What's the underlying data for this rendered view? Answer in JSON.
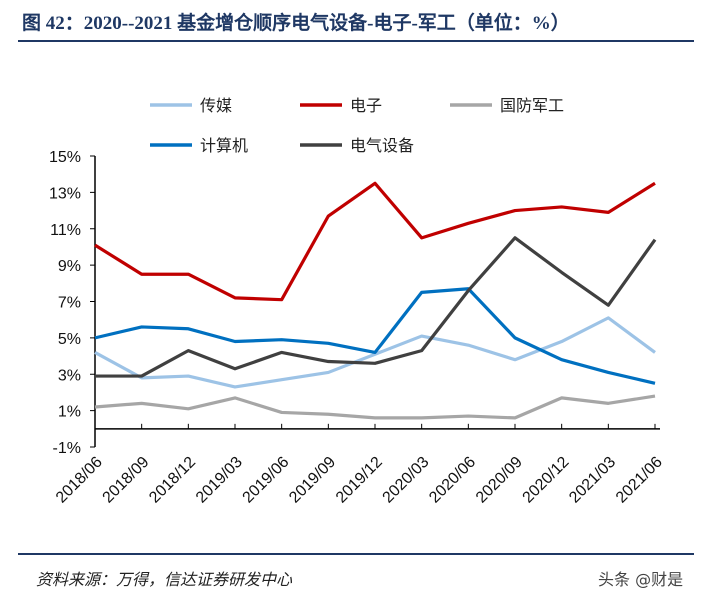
{
  "title": "图 42：2020--2021 基金增仓顺序电气设备-电子-军工（单位：%）",
  "source": "资料来源：万得，信达证券研发中心",
  "watermark": "头条 @财是",
  "chart_data": {
    "type": "line",
    "title": "",
    "xlabel": "",
    "ylabel": "",
    "ylim": [
      -1,
      15
    ],
    "y_ticks": [
      "-1%",
      "1%",
      "3%",
      "5%",
      "7%",
      "9%",
      "11%",
      "13%",
      "15%"
    ],
    "categories": [
      "2018/06",
      "2018/09",
      "2018/12",
      "2019/03",
      "2019/06",
      "2019/09",
      "2019/12",
      "2020/03",
      "2020/06",
      "2020/09",
      "2020/12",
      "2021/03",
      "2021/06"
    ],
    "legend_position": "top",
    "grid": false,
    "series": [
      {
        "name": "传媒",
        "color": "#9dc3e6",
        "values": [
          4.2,
          2.8,
          2.9,
          2.3,
          2.7,
          3.1,
          4.1,
          5.1,
          4.6,
          3.8,
          4.8,
          6.1,
          4.2
        ]
      },
      {
        "name": "电子",
        "color": "#c00000",
        "values": [
          10.1,
          8.5,
          8.5,
          7.2,
          7.1,
          11.7,
          13.5,
          10.5,
          11.3,
          12.0,
          12.2,
          11.9,
          13.5
        ]
      },
      {
        "name": "国防军工",
        "color": "#a6a6a6",
        "values": [
          1.2,
          1.4,
          1.1,
          1.7,
          0.9,
          0.8,
          0.6,
          0.6,
          0.7,
          0.6,
          1.7,
          1.4,
          1.8
        ]
      },
      {
        "name": "计算机",
        "color": "#0070c0",
        "values": [
          5.0,
          5.6,
          5.5,
          4.8,
          4.9,
          4.7,
          4.2,
          7.5,
          7.7,
          5.0,
          3.8,
          3.1,
          2.5
        ]
      },
      {
        "name": "电气设备",
        "color": "#404040",
        "values": [
          2.9,
          2.9,
          4.3,
          3.3,
          4.2,
          3.7,
          3.6,
          4.3,
          7.6,
          10.5,
          8.6,
          6.8,
          10.4
        ]
      }
    ]
  }
}
